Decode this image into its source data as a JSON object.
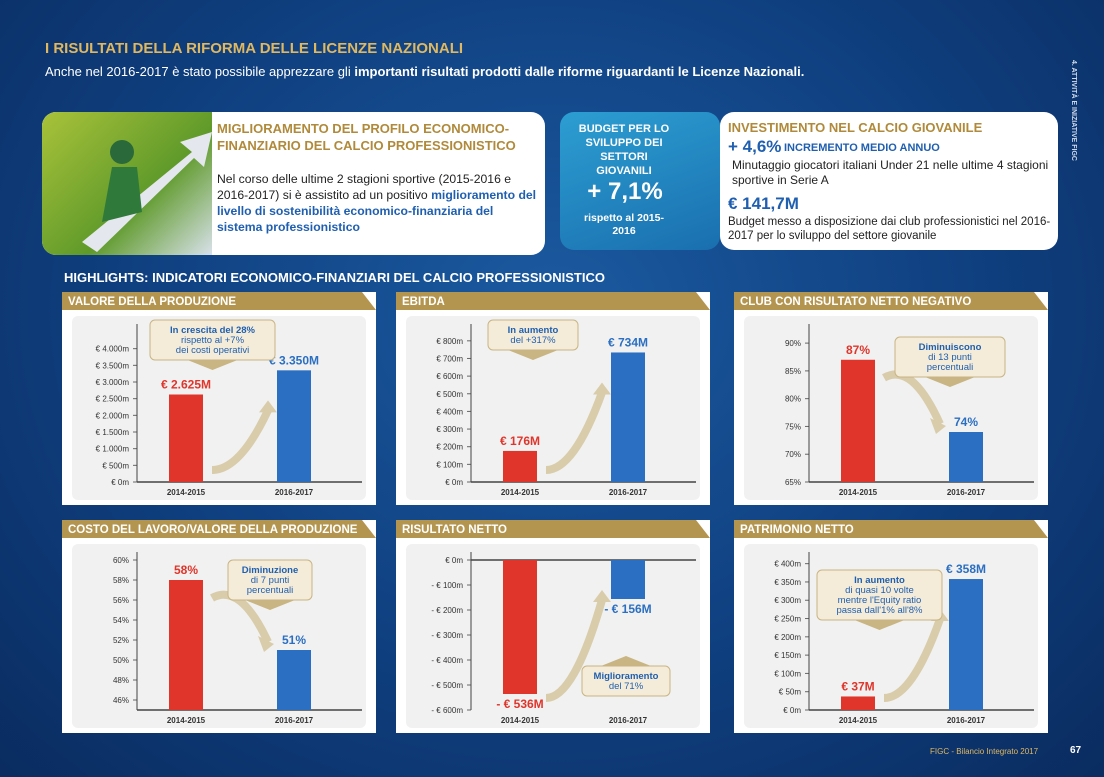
{
  "header": {
    "title": "I RISULTATI DELLA RIFORMA DELLE LICENZE NAZIONALI",
    "subtitle_pre": "Anche nel 2016-2017 è stato possibile apprezzare gli",
    "subtitle_bold": "importanti risultati prodotti dalle riforme riguardanti le Licenze Nazionali."
  },
  "side_label": "4. ATTIVITÀ E INIZIATIVE FIGC",
  "panel1": {
    "title": "MIGLIORAMENTO DEL PROFILO ECONOMICO-FINANZIARIO DEL CALCIO PROFESSIONISTICO",
    "text": "Nel corso delle ultime 2 stagioni sportive (2015-2016 e 2016-2017) si è assistito ad un positivo",
    "bold": "miglioramento del livello di sostenibilità economico-finanziaria del sistema professionistico"
  },
  "budget": {
    "title": "BUDGET PER LO SVILUPPO DEI SETTORI GIOVANILI",
    "value": "+ 7,1%",
    "note": "rispetto al 2015-2016"
  },
  "investment": {
    "title": "INVESTIMENTO NEL CALCIO GIOVANILE",
    "stat1": "+ 4,6%",
    "stat1_label": "INCREMENTO MEDIO ANNUO",
    "text1": "Minutaggio giocatori italiani Under 21 nelle ultime 4 stagioni sportive in Serie A",
    "stat2": "€ 141,7M",
    "text2": "Budget messo a disposizione dai club professionistici nel 2016-2017 per lo sviluppo del settore giovanile"
  },
  "highlights_title": "HIGHLIGHTS: INDICATORI ECONOMICO-FINANZIARI DEL CALCIO PROFESSIONISTICO",
  "chart_data": [
    {
      "type": "bar",
      "title": "VALORE DELLA PRODUZIONE",
      "categories": [
        "2014-2015",
        "2016-2017"
      ],
      "values": [
        2625,
        3350
      ],
      "value_labels": [
        "€ 2.625M",
        "€ 3.350M"
      ],
      "colors": [
        "#e0352a",
        "#2b6fc2"
      ],
      "ylim": [
        0,
        4500
      ],
      "yticks": [
        {
          "value": 0,
          "label": "€ 0m"
        },
        {
          "value": 500,
          "label": "€ 500m"
        },
        {
          "value": 1000,
          "label": "€ 1.000m"
        },
        {
          "value": 1500,
          "label": "€ 1.500m"
        },
        {
          "value": 2000,
          "label": "€ 2.000m"
        },
        {
          "value": 2500,
          "label": "€ 2.500m"
        },
        {
          "value": 3000,
          "label": "€ 3.000m"
        },
        {
          "value": 3500,
          "label": "€ 3.500m"
        },
        {
          "value": 4000,
          "label": "€ 4.000m"
        }
      ],
      "annotation": [
        "In crescita del 28%",
        "rispetto al +7%",
        "dei costi operativi"
      ]
    },
    {
      "type": "bar",
      "title": "EBITDA",
      "categories": [
        "2014-2015",
        "2016-2017"
      ],
      "values": [
        176,
        734
      ],
      "value_labels": [
        "€ 176M",
        "€ 734M"
      ],
      "colors": [
        "#e0352a",
        "#2b6fc2"
      ],
      "ylim": [
        0,
        850
      ],
      "yticks": [
        {
          "value": 0,
          "label": "€ 0m"
        },
        {
          "value": 100,
          "label": "€ 100m"
        },
        {
          "value": 200,
          "label": "€ 200m"
        },
        {
          "value": 300,
          "label": "€ 300m"
        },
        {
          "value": 400,
          "label": "€ 400m"
        },
        {
          "value": 500,
          "label": "€ 500m"
        },
        {
          "value": 600,
          "label": "€ 600m"
        },
        {
          "value": 700,
          "label": "€ 700m"
        },
        {
          "value": 800,
          "label": "€ 800m"
        }
      ],
      "annotation": [
        "In aumento",
        "del +317%"
      ]
    },
    {
      "type": "bar",
      "title": "CLUB CON RISULTATO NETTO NEGATIVO",
      "categories": [
        "2014-2015",
        "2016-2017"
      ],
      "values": [
        87,
        74
      ],
      "value_labels": [
        "87%",
        "74%"
      ],
      "colors": [
        "#e0352a",
        "#2b6fc2"
      ],
      "ylim": [
        65,
        92
      ],
      "yticks": [
        {
          "value": 65,
          "label": "65%"
        },
        {
          "value": 70,
          "label": "70%"
        },
        {
          "value": 75,
          "label": "75%"
        },
        {
          "value": 80,
          "label": "80%"
        },
        {
          "value": 85,
          "label": "85%"
        },
        {
          "value": 90,
          "label": "90%"
        }
      ],
      "annotation": [
        "Diminuiscono",
        "di 13 punti",
        "percentuali"
      ]
    },
    {
      "type": "bar",
      "title": "COSTO DEL LAVORO/VALORE DELLA PRODUZIONE",
      "categories": [
        "2014-2015",
        "2016-2017"
      ],
      "values": [
        58,
        51
      ],
      "value_labels": [
        "58%",
        "51%"
      ],
      "colors": [
        "#e0352a",
        "#2b6fc2"
      ],
      "ylim": [
        45,
        60
      ],
      "yticks": [
        {
          "value": 46,
          "label": "46%"
        },
        {
          "value": 48,
          "label": "48%"
        },
        {
          "value": 50,
          "label": "50%"
        },
        {
          "value": 52,
          "label": "52%"
        },
        {
          "value": 54,
          "label": "54%"
        },
        {
          "value": 56,
          "label": "56%"
        },
        {
          "value": 58,
          "label": "58%"
        },
        {
          "value": 60,
          "label": "60%"
        }
      ],
      "annotation": [
        "Diminuzione",
        "di 7 punti",
        "percentuali"
      ]
    },
    {
      "type": "bar",
      "title": "RISULTATO NETTO",
      "categories": [
        "2014-2015",
        "2016-2017"
      ],
      "values": [
        -536,
        -156
      ],
      "value_labels": [
        "- € 536M",
        "- € 156M"
      ],
      "colors": [
        "#e0352a",
        "#2b6fc2"
      ],
      "ylim": [
        -600,
        0
      ],
      "yticks": [
        {
          "value": 0,
          "label": "€ 0m"
        },
        {
          "value": -100,
          "label": "- € 100m"
        },
        {
          "value": -200,
          "label": "- € 200m"
        },
        {
          "value": -300,
          "label": "- € 300m"
        },
        {
          "value": -400,
          "label": "- € 400m"
        },
        {
          "value": -500,
          "label": "- € 500m"
        },
        {
          "value": -600,
          "label": "- € 600m"
        }
      ],
      "annotation": [
        "Miglioramento",
        "del 71%"
      ]
    },
    {
      "type": "bar",
      "title": "PATRIMONIO NETTO",
      "categories": [
        "2014-2015",
        "2016-2017"
      ],
      "values": [
        37,
        358
      ],
      "value_labels": [
        "€ 37M",
        "€ 358M"
      ],
      "colors": [
        "#e0352a",
        "#2b6fc2"
      ],
      "ylim": [
        0,
        410
      ],
      "yticks": [
        {
          "value": 0,
          "label": "€ 0m"
        },
        {
          "value": 50,
          "label": "€ 50m"
        },
        {
          "value": 100,
          "label": "€ 100m"
        },
        {
          "value": 150,
          "label": "€ 150m"
        },
        {
          "value": 200,
          "label": "€ 200m"
        },
        {
          "value": 250,
          "label": "€ 250m"
        },
        {
          "value": 300,
          "label": "€ 300m"
        },
        {
          "value": 350,
          "label": "€ 350m"
        },
        {
          "value": 400,
          "label": "€ 400m"
        }
      ],
      "annotation": [
        "In aumento",
        "di quasi 10 volte",
        "mentre l'Equity ratio",
        "passa dall'1% all'8%"
      ]
    }
  ],
  "footer": {
    "text": "FIGC - Bilancio Integrato 2017",
    "page": "67"
  }
}
